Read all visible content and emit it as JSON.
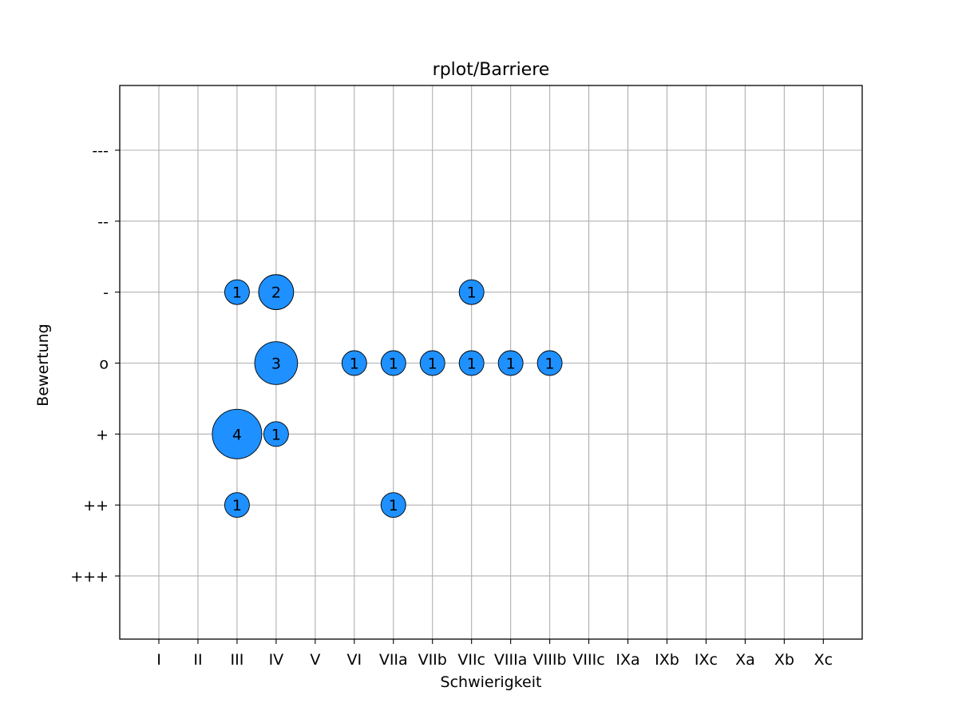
{
  "chart_data": {
    "type": "scatter",
    "title": "rplot/Barriere",
    "xlabel": "Schwierigkeit",
    "ylabel": "Bewertung",
    "x_categories": [
      "I",
      "II",
      "III",
      "IV",
      "V",
      "VI",
      "VIIa",
      "VIIb",
      "VIIc",
      "VIIIa",
      "VIIIb",
      "VIIIc",
      "IXa",
      "IXb",
      "IXc",
      "Xa",
      "Xb",
      "Xc"
    ],
    "y_categories": [
      "---",
      "--",
      "-",
      "o",
      "+",
      "++",
      "+++"
    ],
    "grid": true,
    "bubble_color": "#1e90ff",
    "points": [
      {
        "x": "III",
        "y": "-",
        "count": 1
      },
      {
        "x": "IV",
        "y": "-",
        "count": 2
      },
      {
        "x": "VIIc",
        "y": "-",
        "count": 1
      },
      {
        "x": "IV",
        "y": "o",
        "count": 3
      },
      {
        "x": "VI",
        "y": "o",
        "count": 1
      },
      {
        "x": "VIIa",
        "y": "o",
        "count": 1
      },
      {
        "x": "VIIb",
        "y": "o",
        "count": 1
      },
      {
        "x": "VIIc",
        "y": "o",
        "count": 1
      },
      {
        "x": "VIIIa",
        "y": "o",
        "count": 1
      },
      {
        "x": "VIIIb",
        "y": "o",
        "count": 1
      },
      {
        "x": "III",
        "y": "+",
        "count": 4
      },
      {
        "x": "IV",
        "y": "+",
        "count": 1
      },
      {
        "x": "III",
        "y": "++",
        "count": 1
      },
      {
        "x": "VIIa",
        "y": "++",
        "count": 1
      }
    ]
  }
}
